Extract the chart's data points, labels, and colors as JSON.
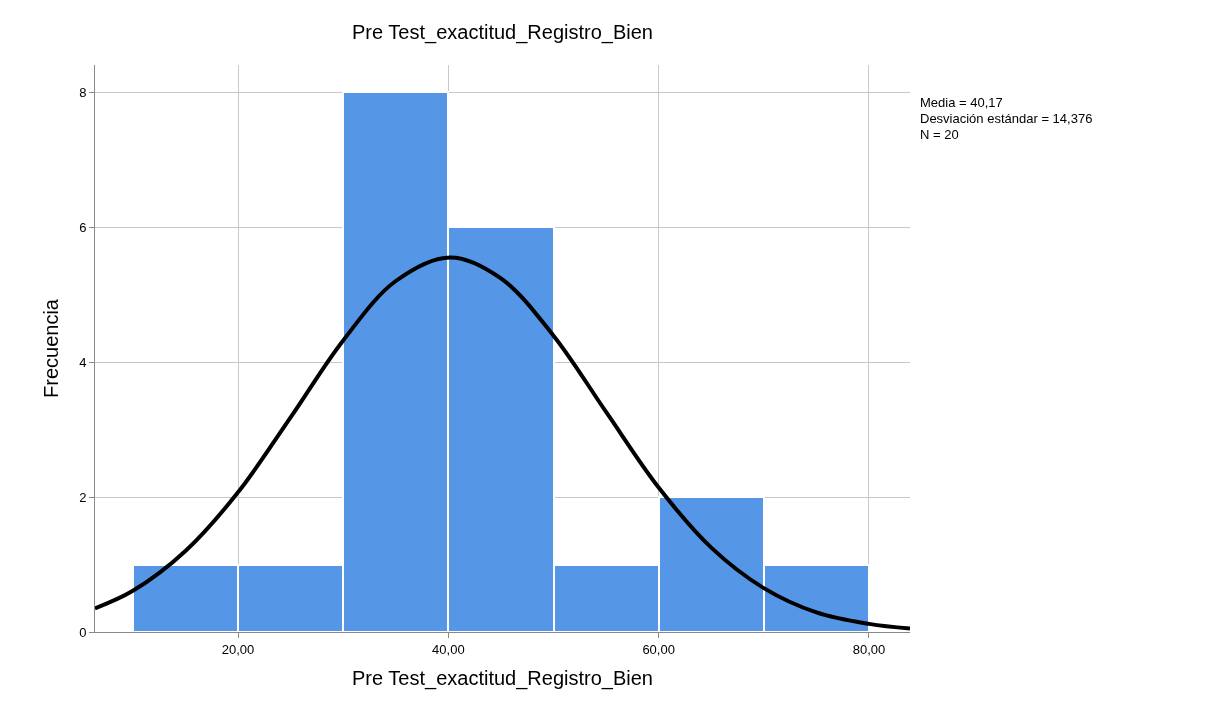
{
  "chart_data": {
    "type": "histogram",
    "title": "Pre Test_exactitud_Registro_Bien",
    "xlabel": "Pre Test_exactitud_Registro_Bien",
    "ylabel": "Frecuencia",
    "bins": [
      10,
      20,
      30,
      40,
      50,
      60,
      70,
      80
    ],
    "values": [
      1,
      1,
      8,
      6,
      1,
      2,
      1
    ],
    "color": "#5596e6",
    "series": [
      {
        "type": "line",
        "color": "#000000",
        "x": [
          6.4,
          10,
          15,
          20,
          25,
          30,
          35,
          40.17,
          45,
          50,
          55,
          60,
          65,
          70,
          75,
          80,
          83.9
        ],
        "values": [
          0.35,
          0.61,
          1.2,
          2.07,
          3.18,
          4.32,
          5.2,
          5.55,
          5.24,
          4.39,
          3.26,
          2.14,
          1.25,
          0.65,
          0.29,
          0.12,
          0.05
        ]
      }
    ],
    "xlim": [
      6.4,
      83.9
    ],
    "xticks": [
      {
        "value": 20,
        "label": "20,00"
      },
      {
        "value": 40,
        "label": "40,00"
      },
      {
        "value": 60,
        "label": "60,00"
      },
      {
        "value": 80,
        "label": "80,00"
      }
    ],
    "ylim": [
      0,
      8.4
    ],
    "yticks": [
      0,
      2,
      4,
      6,
      8
    ],
    "grid": true,
    "marker": "none",
    "line_style": "solid",
    "annotations": [
      "Media = 40,17",
      "Desviación estándar = 14,376",
      "N = 20"
    ]
  }
}
